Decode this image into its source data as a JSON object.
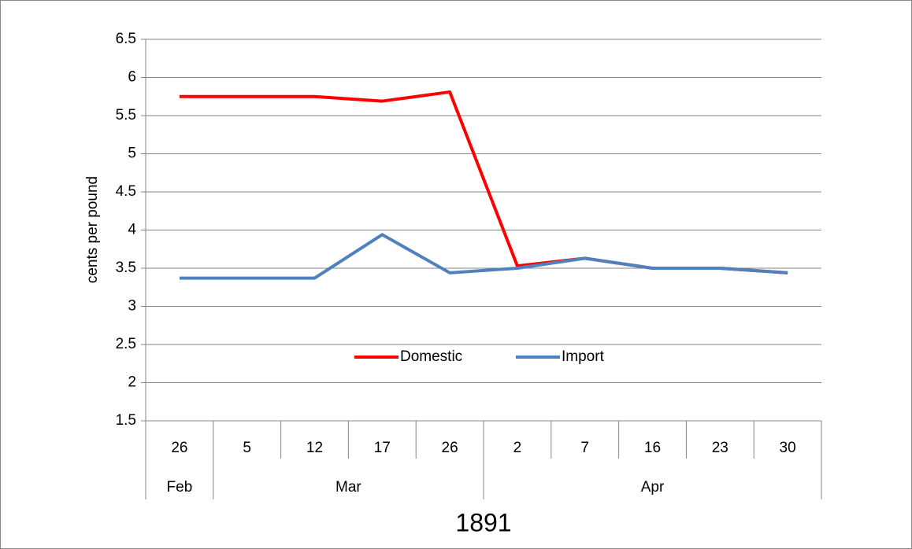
{
  "chart_data": {
    "type": "line",
    "ylabel": "cents per pound",
    "xlabel": "1891",
    "categories": [
      "26",
      "5",
      "12",
      "17",
      "26",
      "2",
      "7",
      "16",
      "23",
      "30"
    ],
    "month_labels": [
      "Feb",
      "Mar",
      null,
      null,
      null,
      "Apr",
      null,
      null,
      null,
      null
    ],
    "series": [
      {
        "name": "Domestic",
        "color": "#ff0000",
        "values": [
          5.75,
          5.75,
          5.75,
          5.69,
          5.81,
          3.53,
          3.63,
          3.5,
          3.5,
          3.44
        ]
      },
      {
        "name": "Import",
        "color": "#4f81bd",
        "values": [
          3.37,
          3.37,
          3.37,
          3.94,
          3.44,
          3.5,
          3.63,
          3.5,
          3.5,
          3.44
        ]
      }
    ],
    "ylim": [
      1.5,
      6.5
    ],
    "yticks": [
      1.5,
      2,
      2.5,
      3,
      3.5,
      4,
      4.5,
      5,
      5.5,
      6,
      6.5
    ],
    "grid": true
  }
}
